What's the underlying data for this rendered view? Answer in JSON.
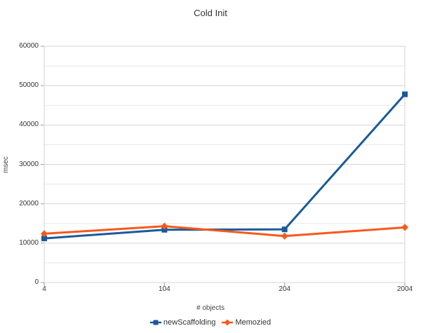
{
  "window": {
    "background": "#ffffff"
  },
  "chart_data": {
    "type": "line",
    "title": "Cold Init",
    "xlabel": "# objects",
    "ylabel": "msec",
    "categories": [
      "4",
      "104",
      "204",
      "2004"
    ],
    "series": [
      {
        "name": "newScaffolding",
        "color": "#1a5a9a",
        "marker": "square",
        "values": [
          11200,
          13400,
          13500,
          47800
        ]
      },
      {
        "name": "Memozied",
        "color": "#f9581c",
        "marker": "diamond",
        "values": [
          12400,
          14300,
          11800,
          14000
        ]
      }
    ],
    "ylim": [
      0,
      60000
    ],
    "y_major_step": 10000,
    "y_minor_step": 5000,
    "y_tick_labels": [
      "0",
      "10000",
      "20000",
      "30000",
      "40000",
      "50000",
      "60000"
    ],
    "grid": "horizontal-only",
    "legend_position": "bottom"
  },
  "colors": {
    "grid_major": "#d4d4d4",
    "grid_minor": "#e7e7e7",
    "tick": "#a0a0a0",
    "text": "#333333"
  }
}
